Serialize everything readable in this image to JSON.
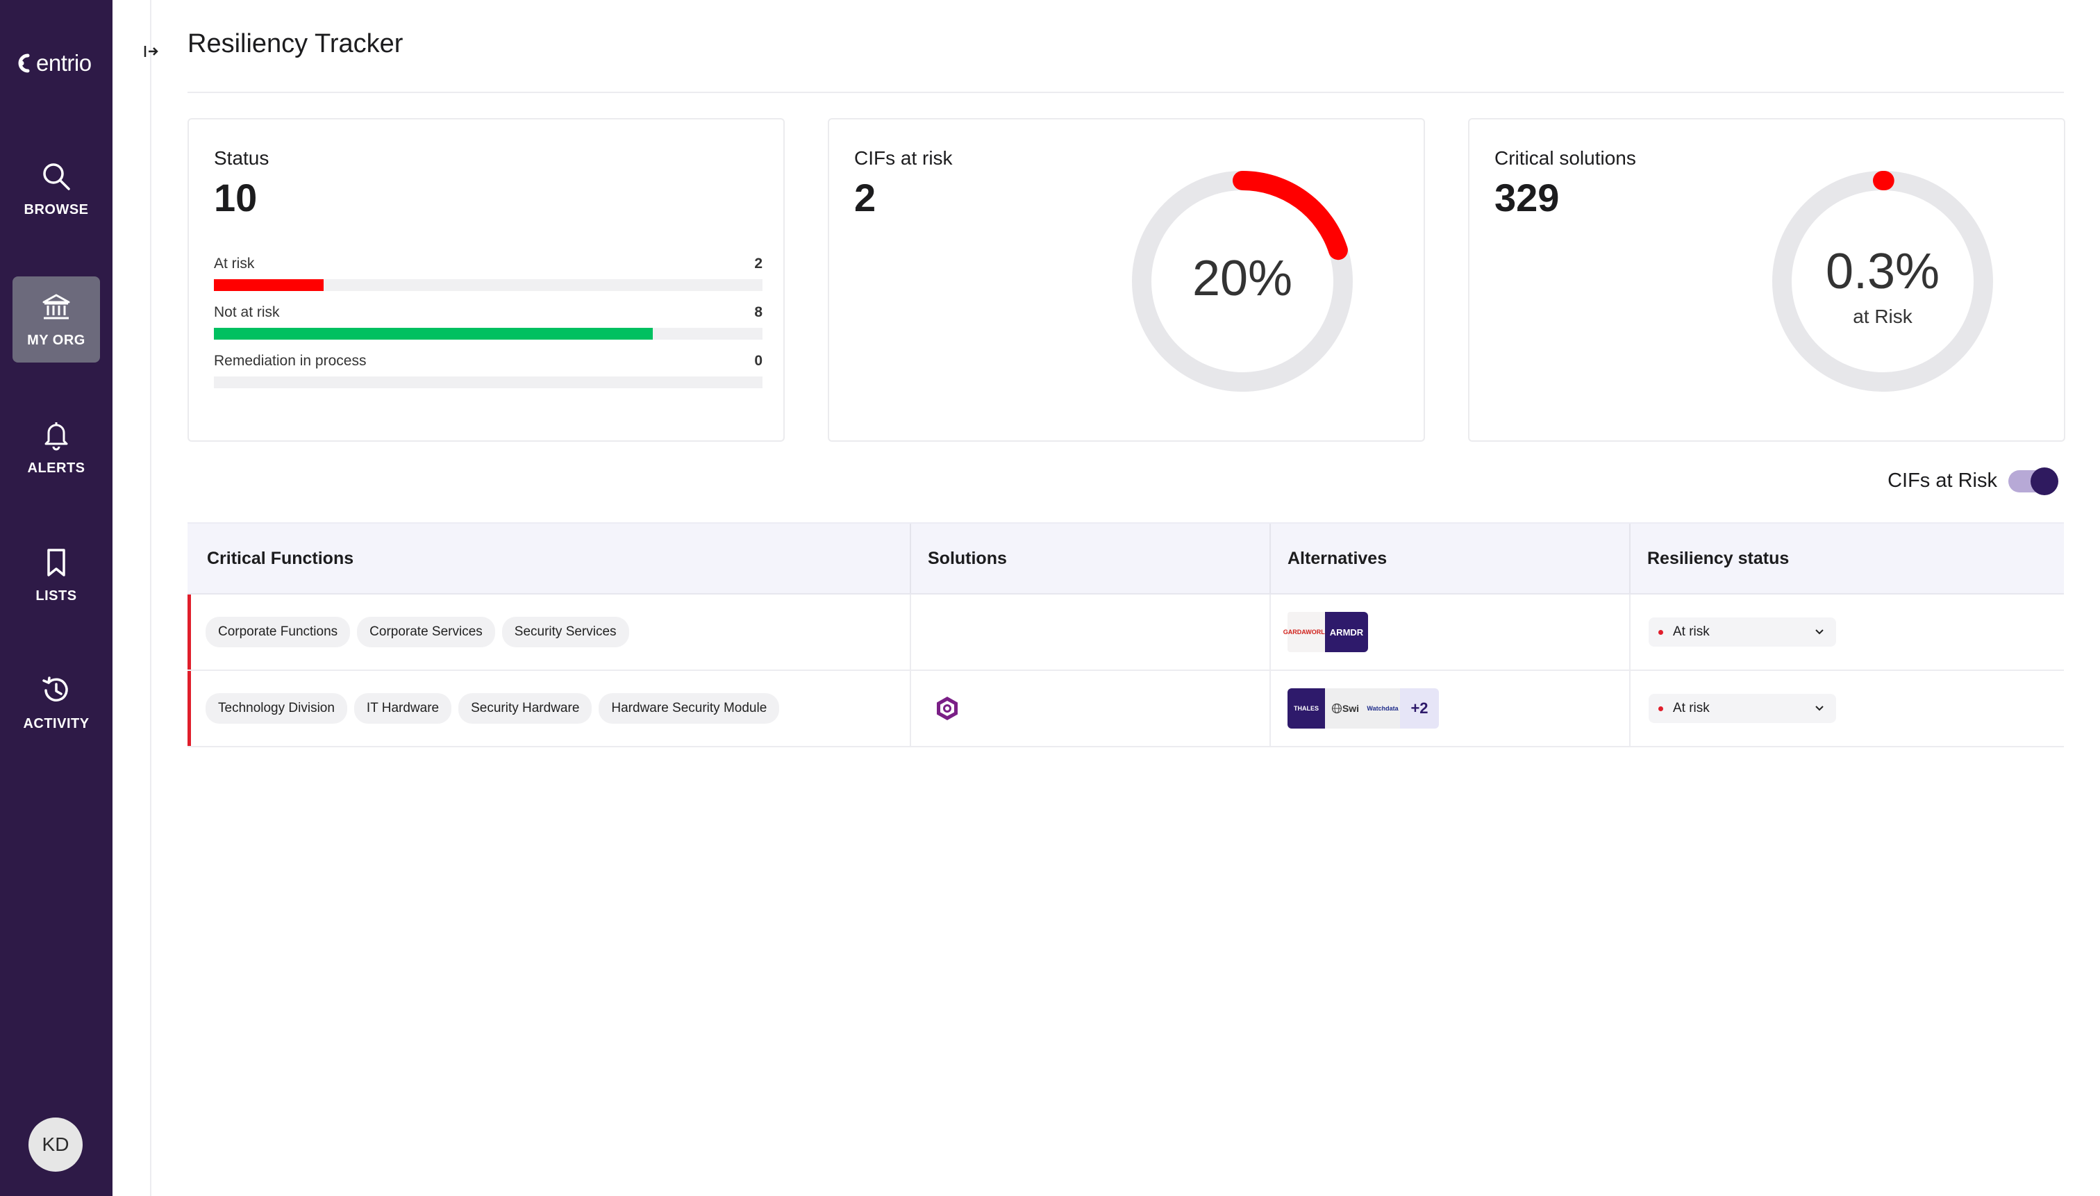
{
  "app": {
    "brand": "entrio",
    "page_title": "Resiliency Tracker",
    "accent_color": "#2e1a47"
  },
  "sidebar": {
    "items": [
      {
        "label": "BROWSE",
        "icon": "search-icon"
      },
      {
        "label": "MY ORG",
        "icon": "bank-icon",
        "active": true
      },
      {
        "label": "ALERTS",
        "icon": "bell-icon"
      },
      {
        "label": "LISTS",
        "icon": "bookmark-icon"
      },
      {
        "label": "ACTIVITY",
        "icon": "history-icon"
      }
    ],
    "avatar_initials": "KD"
  },
  "status_card": {
    "title": "Status",
    "value": "10",
    "rows": [
      {
        "label": "At risk",
        "count": "2",
        "fraction": 0.2,
        "color": "#ff0000"
      },
      {
        "label": "Not at risk",
        "count": "8",
        "fraction": 0.8,
        "color": "#00c060"
      },
      {
        "label": "Remediation in process",
        "count": "0",
        "fraction": 0,
        "color": "#cccccc"
      }
    ]
  },
  "cifs_card": {
    "title": "CIFs at risk",
    "value": "2",
    "percent_label": "20%",
    "fraction": 0.2,
    "arc_color": "#ff0000"
  },
  "solutions_card": {
    "title": "Critical solutions",
    "value": "329",
    "percent_label": "0.3%",
    "sub_label": "at Risk",
    "fraction": 0.003,
    "arc_color": "#ff0000"
  },
  "toggle": {
    "label": "CIFs at Risk",
    "on": true
  },
  "table": {
    "headers": [
      "Critical Functions",
      "Solutions",
      "Alternatives",
      "Resiliency status"
    ],
    "rows": [
      {
        "chips": [
          "Corporate Functions",
          "Corporate Services",
          "Security Services"
        ],
        "alternatives": [
          "GARDAWORLD",
          "ARMDR"
        ],
        "status": "At risk"
      },
      {
        "chips": [
          "Technology Division",
          "IT Hardware",
          "Security Hardware",
          "Hardware Security Module"
        ],
        "alternatives": [
          "THALES",
          "Swi",
          "Watchdata"
        ],
        "alternatives_more": "+2",
        "status": "At risk"
      }
    ]
  }
}
